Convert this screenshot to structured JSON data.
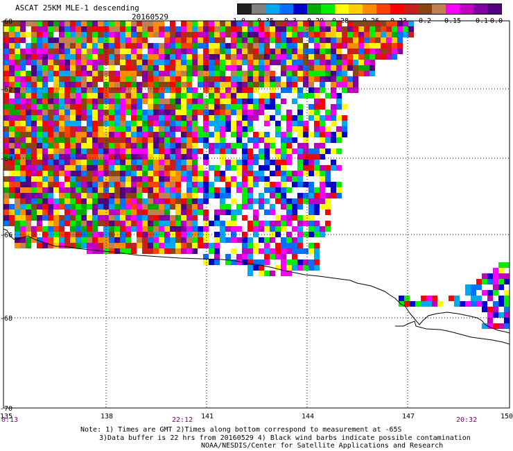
{
  "header": {
    "title": "ASCAT 25KM MLE-1 descending",
    "date": "20160529"
  },
  "legend": {
    "colors": [
      "#202020",
      "#808080",
      "#00a8f0",
      "#0070ff",
      "#0000c8",
      "#00aa00",
      "#00ee00",
      "#ffff00",
      "#ffcc00",
      "#ff8c00",
      "#ff4000",
      "#ff0000",
      "#c81e1e",
      "#8b4513",
      "#c08050",
      "#ff00ff",
      "#c000c0",
      "#8000a0",
      "#500080"
    ],
    "labels": [
      "-1.0",
      "-0.35",
      "-0.3",
      "-0.29",
      "-0.28",
      "-0.26",
      "-0.23",
      "-0.2",
      "-0.15",
      "-0.1",
      "0.0"
    ]
  },
  "axes": {
    "x_ticks": [
      "135",
      "138",
      "141",
      "144",
      "147",
      "150"
    ],
    "y_ticks": [
      "-60",
      "-62",
      "-64",
      "-66",
      "-68",
      "-70"
    ]
  },
  "times": [
    "0:13",
    "22:12",
    "20:32"
  ],
  "notes": [
    "Note: 1) Times are GMT 2)Times along bottom correspond to measurement at -65S",
    "3)Data buffer is 22 hrs from 20160529 4) Black wind barbs indicate possible contamination",
    "NOAA/NESDIS/Center for Satellite Applications and Research"
  ]
}
